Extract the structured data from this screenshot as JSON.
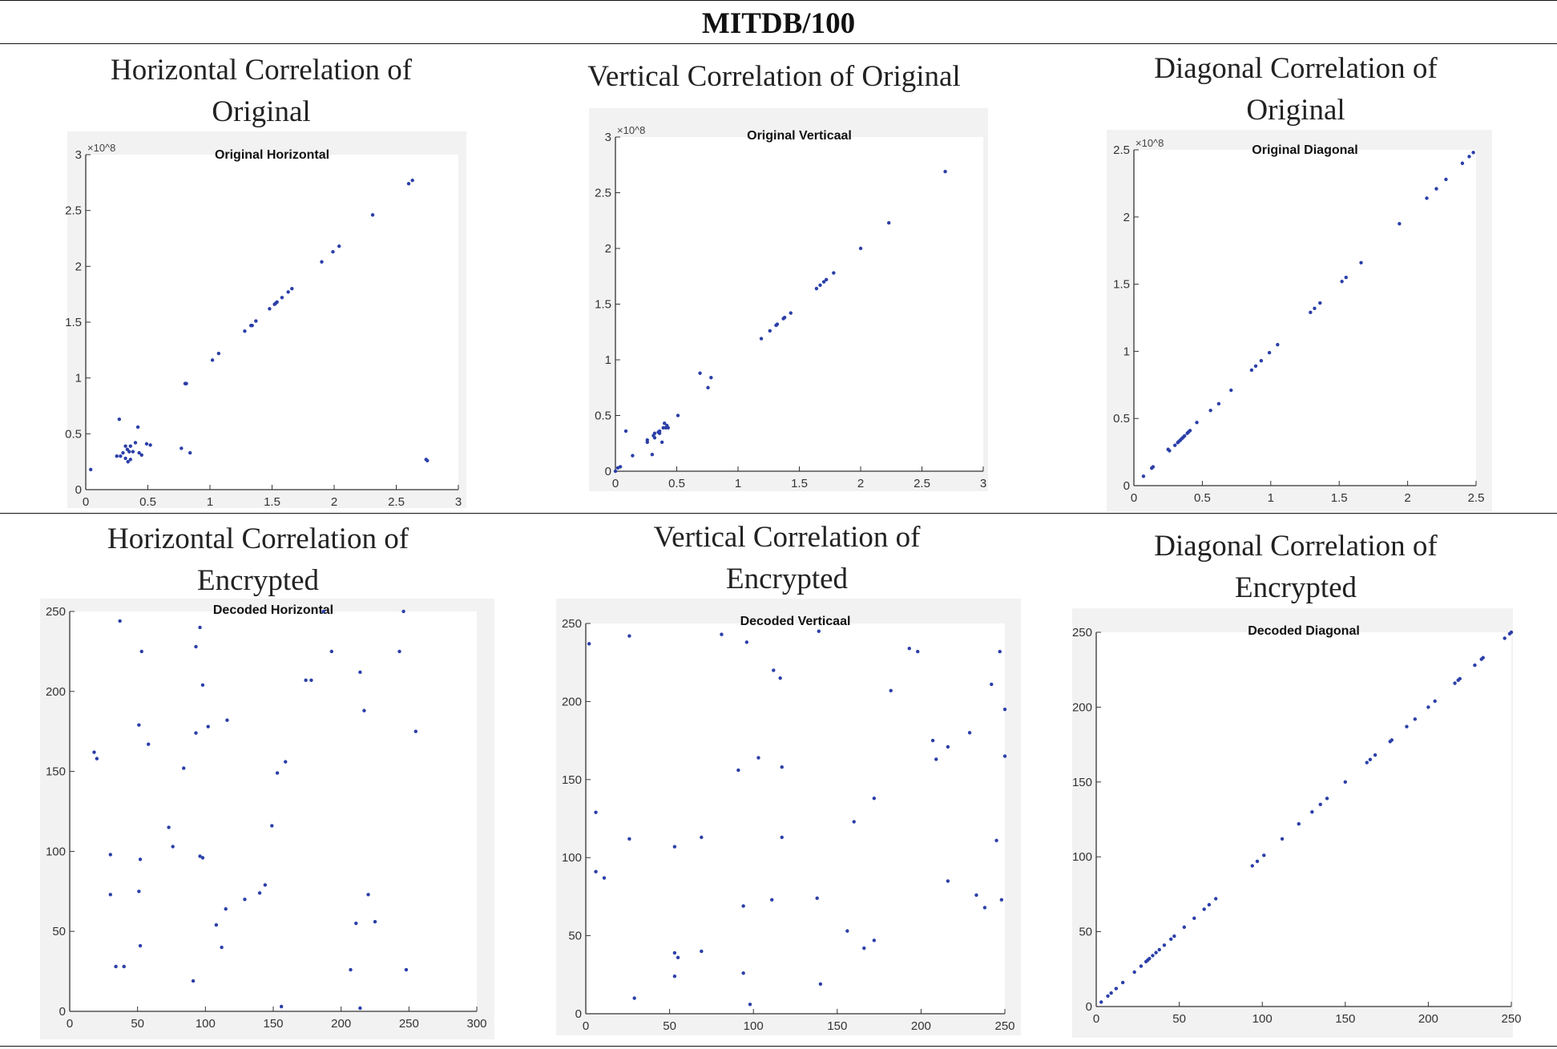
{
  "header": {
    "title": "MITDB/100"
  },
  "cells": [
    {
      "heading_lines": [
        "Horizontal Correlation of",
        "Original"
      ]
    },
    {
      "heading_lines": [
        "Vertical Correlation of Original"
      ]
    },
    {
      "heading_lines": [
        "Diagonal Correlation of",
        "Original"
      ]
    },
    {
      "heading_lines": [
        "Horizontal Correlation of",
        "Encrypted"
      ]
    },
    {
      "heading_lines": [
        "Vertical Correlation of",
        "Encrypted"
      ]
    },
    {
      "heading_lines": [
        "Diagonal Correlation of",
        "Encrypted"
      ]
    }
  ],
  "colors": {
    "marker": "#2b3fa8",
    "panel": "#f2f2f2",
    "axis": "#333333"
  },
  "chart_data": [
    {
      "type": "scatter",
      "title": "Original Horizontal",
      "xlim": [
        0,
        3
      ],
      "ylim": [
        0,
        3
      ],
      "multiplier": "×10^8",
      "xticks": [
        "0",
        "0.5",
        "1",
        "1.5",
        "2",
        "2.5",
        "3"
      ],
      "yticks": [
        "0",
        "0.5",
        "1",
        "1.5",
        "2",
        "2.5",
        "3"
      ],
      "xtick_values": [
        0,
        0.5,
        1,
        1.5,
        2,
        2.5,
        3
      ],
      "ytick_values": [
        0,
        0.5,
        1,
        1.5,
        2,
        2.5,
        3
      ],
      "points": [
        [
          0.04,
          0.18
        ],
        [
          0.27,
          0.63
        ],
        [
          0.25,
          0.3
        ],
        [
          0.28,
          0.3
        ],
        [
          0.3,
          0.33
        ],
        [
          0.32,
          0.28
        ],
        [
          0.32,
          0.39
        ],
        [
          0.335,
          0.36
        ],
        [
          0.34,
          0.25
        ],
        [
          0.35,
          0.34
        ],
        [
          0.36,
          0.39
        ],
        [
          0.36,
          0.27
        ],
        [
          0.38,
          0.34
        ],
        [
          0.4,
          0.42
        ],
        [
          0.42,
          0.56
        ],
        [
          0.43,
          0.33
        ],
        [
          0.45,
          0.31
        ],
        [
          0.49,
          0.41
        ],
        [
          0.52,
          0.4
        ],
        [
          0.77,
          0.37
        ],
        [
          0.84,
          0.33
        ],
        [
          0.8,
          0.95
        ],
        [
          0.81,
          0.95
        ],
        [
          1.02,
          1.16
        ],
        [
          1.07,
          1.22
        ],
        [
          1.28,
          1.42
        ],
        [
          1.33,
          1.47
        ],
        [
          1.34,
          1.47
        ],
        [
          1.37,
          1.51
        ],
        [
          1.48,
          1.62
        ],
        [
          1.52,
          1.66
        ],
        [
          1.53,
          1.67
        ],
        [
          1.54,
          1.68
        ],
        [
          1.58,
          1.72
        ],
        [
          1.63,
          1.77
        ],
        [
          1.66,
          1.8
        ],
        [
          1.9,
          2.04
        ],
        [
          1.99,
          2.13
        ],
        [
          2.04,
          2.18
        ],
        [
          2.31,
          2.46
        ],
        [
          2.6,
          2.74
        ],
        [
          2.63,
          2.77
        ],
        [
          2.74,
          0.27
        ],
        [
          2.75,
          0.26
        ]
      ]
    },
    {
      "type": "scatter",
      "title": "Original Verticaal",
      "xlim": [
        0,
        3
      ],
      "ylim": [
        0,
        3
      ],
      "multiplier": "×10^8",
      "xticks": [
        "0",
        "0.5",
        "1",
        "1.5",
        "2",
        "2.5",
        "3"
      ],
      "yticks": [
        "0",
        "0.5",
        "1",
        "1.5",
        "2",
        "2.5",
        "3"
      ],
      "xtick_values": [
        0,
        0.5,
        1,
        1.5,
        2,
        2.5,
        3
      ],
      "ytick_values": [
        0,
        0.5,
        1,
        1.5,
        2,
        2.5,
        3
      ],
      "points": [
        [
          0,
          0
        ],
        [
          0.02,
          0.03
        ],
        [
          0.04,
          0.04
        ],
        [
          0.085,
          0.36
        ],
        [
          0.14,
          0.14
        ],
        [
          0.26,
          0.28
        ],
        [
          0.26,
          0.26
        ],
        [
          0.3,
          0.15
        ],
        [
          0.31,
          0.32
        ],
        [
          0.32,
          0.3
        ],
        [
          0.32,
          0.34
        ],
        [
          0.35,
          0.35
        ],
        [
          0.36,
          0.36
        ],
        [
          0.36,
          0.34
        ],
        [
          0.38,
          0.26
        ],
        [
          0.39,
          0.39
        ],
        [
          0.4,
          0.43
        ],
        [
          0.41,
          0.39
        ],
        [
          0.42,
          0.41
        ],
        [
          0.43,
          0.39
        ],
        [
          0.51,
          0.5
        ],
        [
          0.69,
          0.88
        ],
        [
          0.755,
          0.75
        ],
        [
          0.78,
          0.84
        ],
        [
          1.19,
          1.19
        ],
        [
          1.26,
          1.26
        ],
        [
          1.31,
          1.31
        ],
        [
          1.32,
          1.32
        ],
        [
          1.37,
          1.37
        ],
        [
          1.38,
          1.38
        ],
        [
          1.43,
          1.42
        ],
        [
          1.64,
          1.64
        ],
        [
          1.67,
          1.67
        ],
        [
          1.7,
          1.7
        ],
        [
          1.72,
          1.72
        ],
        [
          1.78,
          1.78
        ],
        [
          2.0,
          2.0
        ],
        [
          2.23,
          2.23
        ],
        [
          2.69,
          2.69
        ]
      ]
    },
    {
      "type": "scatter",
      "title": "Original Diagonal",
      "xlim": [
        0,
        2.5
      ],
      "ylim": [
        0,
        2.5
      ],
      "multiplier": "×10^8",
      "xticks": [
        "0",
        "0.5",
        "1",
        "1.5",
        "2",
        "2.5"
      ],
      "yticks": [
        "0",
        "0.5",
        "1",
        "1.5",
        "2",
        "2.5"
      ],
      "xtick_values": [
        0,
        0.5,
        1,
        1.5,
        2,
        2.5
      ],
      "ytick_values": [
        0,
        0.5,
        1,
        1.5,
        2,
        2.5
      ],
      "points": [
        [
          0.07,
          0.07
        ],
        [
          0.13,
          0.13
        ],
        [
          0.14,
          0.14
        ],
        [
          0.25,
          0.27
        ],
        [
          0.26,
          0.26
        ],
        [
          0.3,
          0.3
        ],
        [
          0.32,
          0.32
        ],
        [
          0.33,
          0.33
        ],
        [
          0.34,
          0.34
        ],
        [
          0.35,
          0.35
        ],
        [
          0.36,
          0.36
        ],
        [
          0.37,
          0.37
        ],
        [
          0.39,
          0.39
        ],
        [
          0.4,
          0.4
        ],
        [
          0.41,
          0.41
        ],
        [
          0.46,
          0.47
        ],
        [
          0.56,
          0.56
        ],
        [
          0.62,
          0.61
        ],
        [
          0.71,
          0.71
        ],
        [
          0.86,
          0.86
        ],
        [
          0.89,
          0.89
        ],
        [
          0.93,
          0.93
        ],
        [
          0.99,
          0.99
        ],
        [
          1.05,
          1.05
        ],
        [
          1.29,
          1.29
        ],
        [
          1.32,
          1.32
        ],
        [
          1.36,
          1.36
        ],
        [
          1.52,
          1.52
        ],
        [
          1.55,
          1.55
        ],
        [
          1.66,
          1.66
        ],
        [
          1.94,
          1.95
        ],
        [
          2.14,
          2.14
        ],
        [
          2.21,
          2.21
        ],
        [
          2.28,
          2.28
        ],
        [
          2.4,
          2.4
        ],
        [
          2.45,
          2.45
        ],
        [
          2.48,
          2.48
        ]
      ]
    },
    {
      "type": "scatter",
      "title": "Decoded Horizontal",
      "xlim": [
        0,
        300
      ],
      "ylim": [
        0,
        250
      ],
      "xticks": [
        "0",
        "50",
        "100",
        "150",
        "200",
        "250",
        "300"
      ],
      "yticks": [
        "0",
        "50",
        "100",
        "150",
        "200",
        "250"
      ],
      "xtick_values": [
        0,
        50,
        100,
        150,
        200,
        250,
        300
      ],
      "ytick_values": [
        0,
        50,
        100,
        150,
        200,
        250
      ],
      "points": [
        [
          18,
          162
        ],
        [
          20,
          158
        ],
        [
          30,
          98
        ],
        [
          30,
          73
        ],
        [
          34,
          28
        ],
        [
          40,
          28
        ],
        [
          37,
          244
        ],
        [
          53,
          225
        ],
        [
          51,
          179
        ],
        [
          52,
          95
        ],
        [
          51,
          75
        ],
        [
          52,
          41
        ],
        [
          58,
          167
        ],
        [
          73,
          115
        ],
        [
          76,
          103
        ],
        [
          84,
          152
        ],
        [
          91,
          19
        ],
        [
          93,
          228
        ],
        [
          93,
          174
        ],
        [
          96,
          240
        ],
        [
          98,
          204
        ],
        [
          96,
          97
        ],
        [
          98,
          96
        ],
        [
          102,
          178
        ],
        [
          108,
          54
        ],
        [
          112,
          40
        ],
        [
          115,
          64
        ],
        [
          116,
          182
        ],
        [
          129,
          70
        ],
        [
          140,
          74
        ],
        [
          144,
          79
        ],
        [
          149,
          116
        ],
        [
          153,
          149
        ],
        [
          156,
          3
        ],
        [
          159,
          156
        ],
        [
          174,
          207
        ],
        [
          178,
          207
        ],
        [
          187,
          250
        ],
        [
          193,
          225
        ],
        [
          207,
          26
        ],
        [
          211,
          55
        ],
        [
          214,
          212
        ],
        [
          214,
          2
        ],
        [
          217,
          188
        ],
        [
          220,
          73
        ],
        [
          225,
          56
        ],
        [
          243,
          225
        ],
        [
          246,
          250
        ],
        [
          248,
          26
        ],
        [
          255,
          175
        ]
      ]
    },
    {
      "type": "scatter",
      "title": "Decoded Verticaal",
      "xlim": [
        0,
        250
      ],
      "ylim": [
        0,
        250
      ],
      "xticks": [
        "0",
        "50",
        "100",
        "150",
        "200",
        "250"
      ],
      "yticks": [
        "0",
        "50",
        "100",
        "150",
        "200",
        "250"
      ],
      "xtick_values": [
        0,
        50,
        100,
        150,
        200,
        250
      ],
      "ytick_values": [
        0,
        50,
        100,
        150,
        200,
        250
      ],
      "points": [
        [
          2,
          237
        ],
        [
          6,
          129
        ],
        [
          6,
          91
        ],
        [
          11,
          87
        ],
        [
          26,
          242
        ],
        [
          26,
          112
        ],
        [
          29,
          10
        ],
        [
          53,
          107
        ],
        [
          53,
          39
        ],
        [
          55,
          36
        ],
        [
          53,
          24
        ],
        [
          69,
          113
        ],
        [
          69,
          40
        ],
        [
          81,
          243
        ],
        [
          91,
          156
        ],
        [
          94,
          69
        ],
        [
          94,
          26
        ],
        [
          96,
          238
        ],
        [
          98,
          6
        ],
        [
          103,
          164
        ],
        [
          111,
          73
        ],
        [
          112,
          220
        ],
        [
          116,
          215
        ],
        [
          117,
          158
        ],
        [
          117,
          113
        ],
        [
          138,
          74
        ],
        [
          139,
          245
        ],
        [
          140,
          19
        ],
        [
          156,
          53
        ],
        [
          160,
          123
        ],
        [
          166,
          42
        ],
        [
          172,
          138
        ],
        [
          172,
          47
        ],
        [
          182,
          207
        ],
        [
          193,
          234
        ],
        [
          198,
          232
        ],
        [
          207,
          175
        ],
        [
          209,
          163
        ],
        [
          216,
          171
        ],
        [
          216,
          85
        ],
        [
          229,
          180
        ],
        [
          233,
          76
        ],
        [
          238,
          68
        ],
        [
          242,
          211
        ],
        [
          245,
          111
        ],
        [
          247,
          232
        ],
        [
          248,
          73
        ],
        [
          250,
          195
        ],
        [
          250,
          165
        ]
      ]
    },
    {
      "type": "scatter",
      "title": "Decoded Diagonal",
      "xlim": [
        0,
        250
      ],
      "ylim": [
        0,
        250
      ],
      "xticks": [
        "0",
        "50",
        "100",
        "150",
        "200",
        "250"
      ],
      "yticks": [
        "0",
        "50",
        "100",
        "150",
        "200",
        "250"
      ],
      "xtick_values": [
        0,
        50,
        100,
        150,
        200,
        250
      ],
      "ytick_values": [
        0,
        50,
        100,
        150,
        200,
        250
      ],
      "points": [
        [
          3,
          3
        ],
        [
          7,
          7
        ],
        [
          9,
          9
        ],
        [
          12,
          12
        ],
        [
          16,
          16
        ],
        [
          23,
          23
        ],
        [
          27,
          27
        ],
        [
          30,
          30
        ],
        [
          31,
          31
        ],
        [
          32,
          32
        ],
        [
          34,
          34
        ],
        [
          36,
          36
        ],
        [
          38,
          38
        ],
        [
          41,
          41
        ],
        [
          45,
          45
        ],
        [
          47,
          47
        ],
        [
          53,
          53
        ],
        [
          59,
          59
        ],
        [
          65,
          65
        ],
        [
          68,
          68
        ],
        [
          72,
          72
        ],
        [
          94,
          94
        ],
        [
          97,
          97
        ],
        [
          101,
          101
        ],
        [
          112,
          112
        ],
        [
          122,
          122
        ],
        [
          130,
          130
        ],
        [
          135,
          135
        ],
        [
          139,
          139
        ],
        [
          150,
          150
        ],
        [
          163,
          163
        ],
        [
          165,
          165
        ],
        [
          168,
          168
        ],
        [
          177,
          177
        ],
        [
          178,
          178
        ],
        [
          187,
          187
        ],
        [
          192,
          192
        ],
        [
          200,
          200
        ],
        [
          204,
          204
        ],
        [
          216,
          216
        ],
        [
          218,
          218
        ],
        [
          219,
          219
        ],
        [
          228,
          228
        ],
        [
          232,
          232
        ],
        [
          233,
          233
        ],
        [
          246,
          246
        ],
        [
          249,
          249
        ],
        [
          250,
          250
        ]
      ]
    }
  ]
}
